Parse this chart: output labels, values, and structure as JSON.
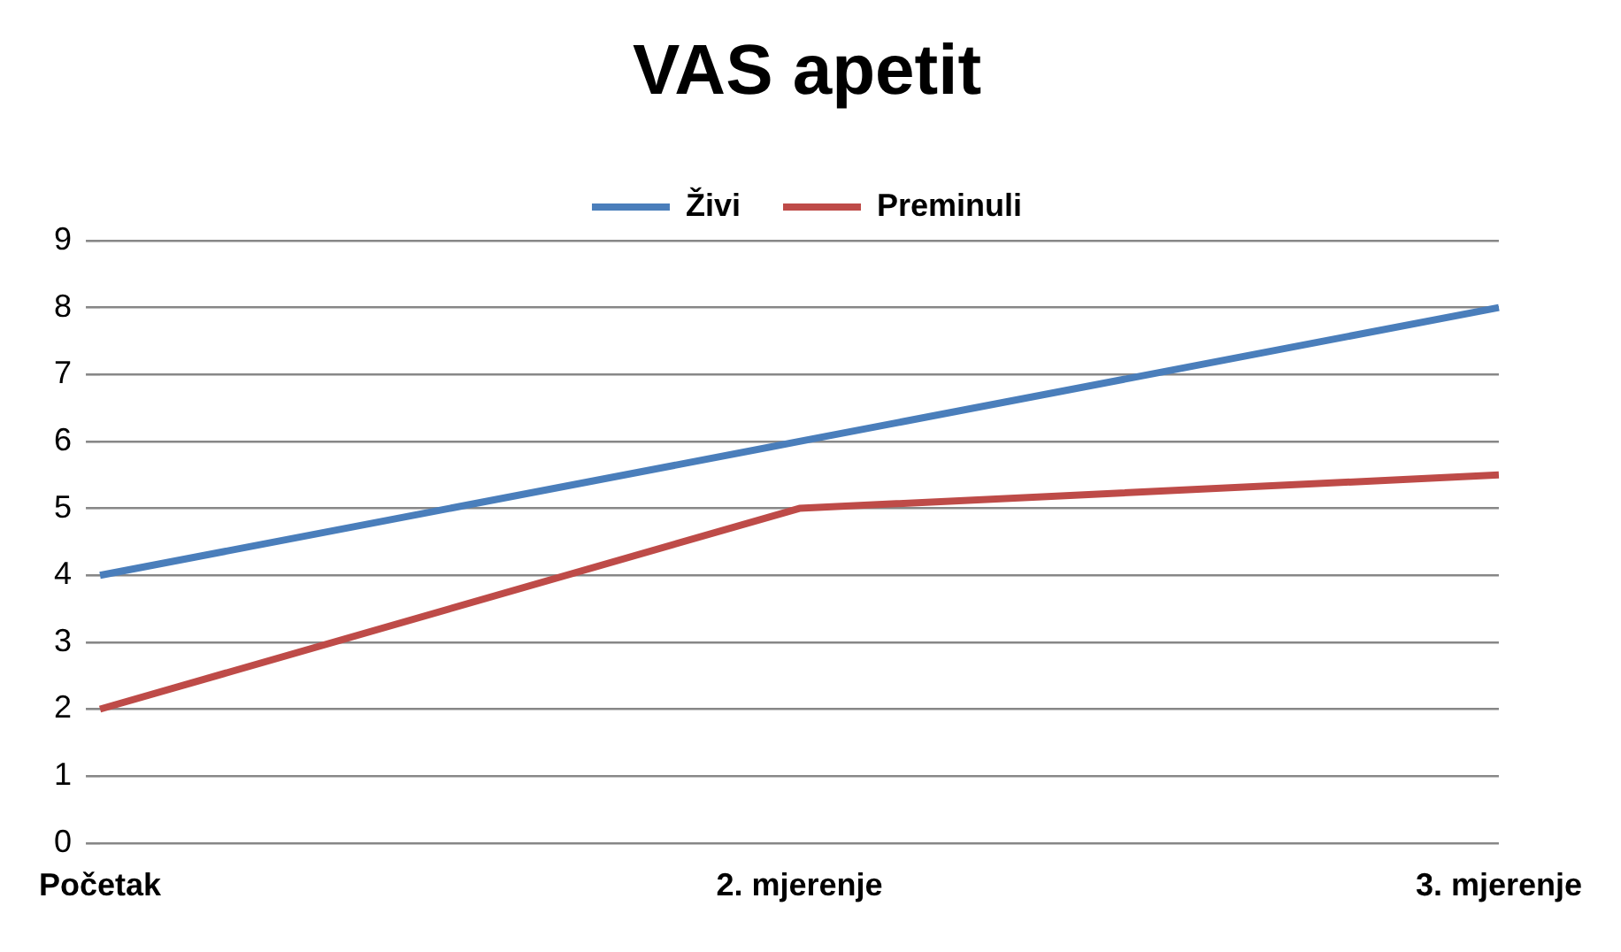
{
  "chart_data": {
    "type": "line",
    "title": "VAS apetit",
    "categories": [
      "Početak",
      "2. mjerenje",
      "3. mjerenje"
    ],
    "series": [
      {
        "name": "Živi",
        "color": "#4a7ebb",
        "values": [
          4,
          6,
          8
        ]
      },
      {
        "name": "Preminuli",
        "color": "#be4b48",
        "values": [
          2,
          5,
          5.5
        ]
      }
    ],
    "ylim": [
      0,
      9
    ],
    "yticks": [
      0,
      1,
      2,
      3,
      4,
      5,
      6,
      7,
      8,
      9
    ],
    "grid": "y",
    "legend": "top",
    "marker": "none",
    "line_style": "solid"
  }
}
